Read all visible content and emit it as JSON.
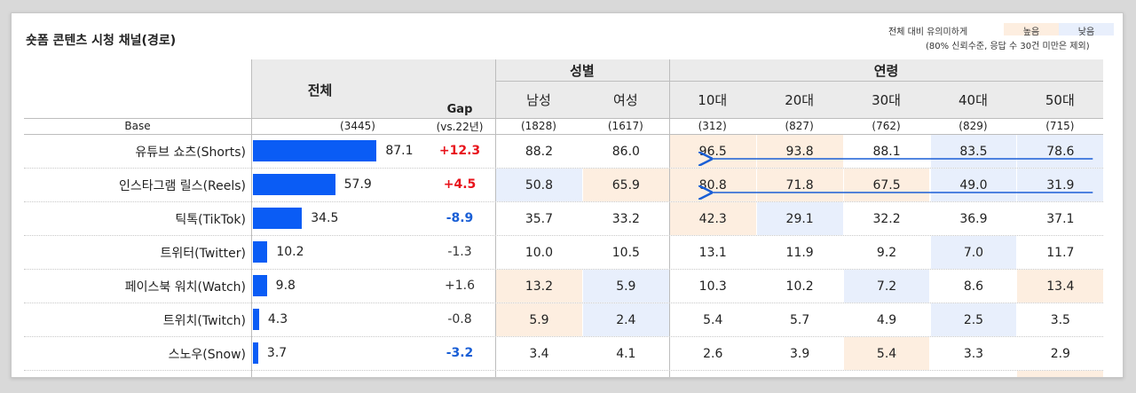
{
  "title": "숏폼 콘텐츠 시청 채널(경로)",
  "legend": {
    "note_line1": "전체 대비 유의미하게",
    "note_line2": "(80% 신뢰수준, 응답 수 30건 미만은 제외)",
    "high_label": "높음",
    "low_label": "낮음",
    "high_color": "#fdeee0",
    "low_color": "#e8effc"
  },
  "headers": {
    "total": "전체",
    "gap_line1": "Gap",
    "gap_line2": "(vs.22년)",
    "base_label": "Base",
    "gender_group": "성별",
    "age_group": "연령",
    "columns": [
      "남성",
      "여성",
      "10대",
      "20대",
      "30대",
      "40대",
      "50대"
    ]
  },
  "chart_data": {
    "type": "table",
    "bar_series": "전체",
    "bar_color": "#0a5cf5",
    "bar_max": 100,
    "total_base": "(3445)",
    "column_bases": [
      "(1828)",
      "(1617)",
      "(312)",
      "(827)",
      "(762)",
      "(829)",
      "(715)"
    ],
    "rows": [
      {
        "label": "유튜브 쇼츠(Shorts)",
        "total": 87.1,
        "gap": "+12.3",
        "gap_style": "pos",
        "values": [
          88.2,
          86.0,
          96.5,
          93.8,
          88.1,
          83.5,
          78.6
        ],
        "flags": [
          "",
          "",
          "hi",
          "hi",
          "",
          "lo",
          "lo"
        ]
      },
      {
        "label": "인스타그램 릴스(Reels)",
        "total": 57.9,
        "gap": "+4.5",
        "gap_style": "pos",
        "values": [
          50.8,
          65.9,
          80.8,
          71.8,
          67.5,
          49.0,
          31.9
        ],
        "flags": [
          "lo",
          "hi",
          "hi",
          "hi",
          "hi",
          "lo",
          "lo"
        ]
      },
      {
        "label": "틱톡(TikTok)",
        "total": 34.5,
        "gap": "-8.9",
        "gap_style": "neg",
        "values": [
          35.7,
          33.2,
          42.3,
          29.1,
          32.2,
          36.9,
          37.1
        ],
        "flags": [
          "",
          "",
          "hi",
          "lo",
          "",
          "",
          ""
        ]
      },
      {
        "label": "트위터(Twitter)",
        "total": 10.2,
        "gap": "-1.3",
        "gap_style": "plain",
        "values": [
          10.0,
          10.5,
          13.1,
          11.9,
          9.2,
          7.0,
          11.7
        ],
        "flags": [
          "",
          "",
          "",
          "",
          "",
          "lo",
          ""
        ]
      },
      {
        "label": "페이스북 워치(Watch)",
        "total": 9.8,
        "gap": "+1.6",
        "gap_style": "plain",
        "values": [
          13.2,
          5.9,
          10.3,
          10.2,
          7.2,
          8.6,
          13.4
        ],
        "flags": [
          "hi",
          "lo",
          "",
          "",
          "lo",
          "",
          "hi"
        ]
      },
      {
        "label": "트위치(Twitch)",
        "total": 4.3,
        "gap": "-0.8",
        "gap_style": "plain",
        "values": [
          5.9,
          2.4,
          5.4,
          5.7,
          4.9,
          2.5,
          3.5
        ],
        "flags": [
          "hi",
          "lo",
          "",
          "",
          "",
          "lo",
          ""
        ]
      },
      {
        "label": "스노우(Snow)",
        "total": 3.7,
        "gap": "-3.2",
        "gap_style": "neg",
        "values": [
          3.4,
          4.1,
          2.6,
          3.9,
          5.4,
          3.3,
          2.9
        ],
        "flags": [
          "",
          "",
          "",
          "",
          "hi",
          "",
          ""
        ]
      }
    ],
    "trend_arrows": [
      {
        "row": 0,
        "from_column": "50대",
        "to_column": "10대"
      },
      {
        "row": 1,
        "from_column": "50대",
        "to_column": "10대"
      }
    ],
    "colors": {
      "positive_gap": "#e8141c",
      "negative_gap": "#1a5fd6",
      "neutral_gap": "#333333",
      "arrow": "#1a5fd6"
    }
  }
}
